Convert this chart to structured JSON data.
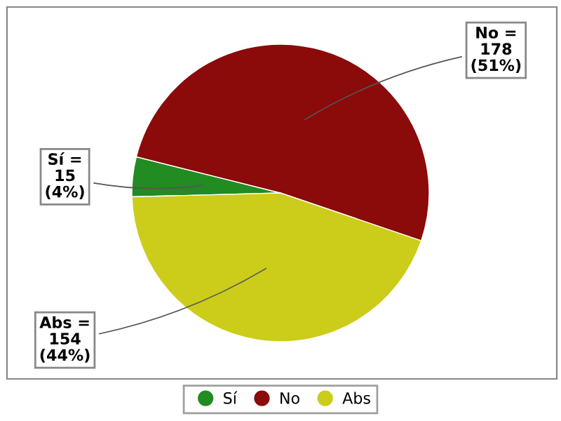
{
  "chart_data": {
    "type": "pie",
    "categories": [
      "Sí",
      "No",
      "Abs"
    ],
    "values": [
      15,
      178,
      154
    ],
    "colors": [
      "#228b22",
      "#8b0a0a",
      "#cccc1a"
    ],
    "value_labels": [
      "Sí =\n15\n(4%)",
      "No =\n178\n(51%)",
      "Abs =\n154\n(44%)"
    ],
    "legend": "bottom"
  }
}
